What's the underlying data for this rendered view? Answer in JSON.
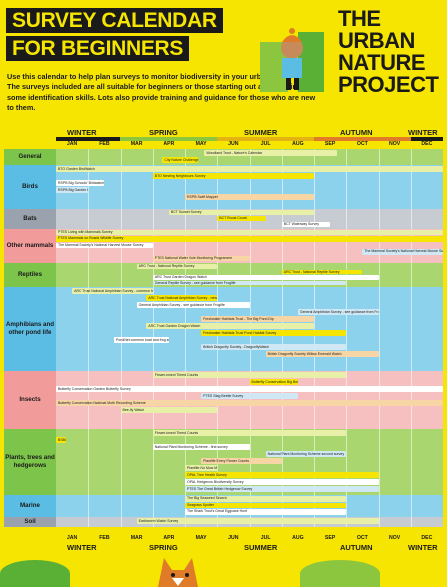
{
  "title": [
    "SURVEY CALENDAR",
    "FOR BEGINNERS"
  ],
  "intro": "Use this calendar to help plan surveys to monitor biodiversity in your urban green space. The surveys included are all suitable for beginners or those starting out and learning some identification skills. Lots also provide training and guidance for those who are new to them.",
  "logo": [
    "THE",
    "URBAN",
    "NATURE",
    "PROJECT"
  ],
  "seasons": [
    "WINTER",
    "SPRING",
    "SUMMER",
    "AUTUMN",
    "WINTER"
  ],
  "months": [
    "JAN",
    "FEB",
    "MAR",
    "APR",
    "MAY",
    "JUN",
    "JUL",
    "AUG",
    "SEP",
    "OCT",
    "NOV",
    "DEC"
  ],
  "colors": {
    "background": "#f6e500",
    "green_band": "#7cc44a",
    "green_band_light": "#a9d66f",
    "blue_band": "#5bbde3",
    "blue_band_light": "#8dd2ec",
    "pink_band": "#f29b9b",
    "grey_band": "#9aa3ad",
    "grey_band_light": "#c6ccd2",
    "winter_bar": "#1a1a1a",
    "spring_bar": "#8cc63f",
    "summer_bar": "#e3b312",
    "autumn_bar": "#e07b27"
  },
  "categories": [
    {
      "label": "General",
      "bars": [
        {
          "text": "Woodland Trust - Nature's Calendar",
          "start": 4.6,
          "end": 8.7
        },
        {
          "text": "City Nature Challenge",
          "start": 3.3,
          "end": 4.4
        }
      ]
    },
    {
      "label": "Birds",
      "bars": [
        {
          "text": "BTO Garden BirdWatch",
          "start": 0,
          "end": 12
        },
        {
          "text": "BTO Nesting Neighbours Survey",
          "start": 3,
          "end": 8
        },
        {
          "text": "RSPB Big Schools' Birdwatch",
          "start": 0,
          "end": 1.5
        },
        {
          "text": "RSPB Big Garden Birdwatch",
          "start": 0,
          "end": 1
        },
        {
          "text": "RSPB Swift Mapper",
          "start": 4,
          "end": 8
        }
      ]
    },
    {
      "label": "Bats",
      "bars": [
        {
          "text": "BCT Sunset Survey",
          "start": 3.5,
          "end": 8
        },
        {
          "text": "BCT Roost Count",
          "start": 5,
          "end": 6.5
        },
        {
          "text": "BCT Waterway Survey",
          "start": 7,
          "end": 8.5
        }
      ]
    },
    {
      "label": "Other mammals",
      "bars": [
        {
          "text": "PTES Living with Mammals Survey",
          "start": 0,
          "end": 12
        },
        {
          "text": "PTES Mammals on Roads Wildlife Survey",
          "start": 0,
          "end": 12
        },
        {
          "text": "The Mammal Society's National Harvest Mouse Survey",
          "start": 0,
          "end": 3
        },
        {
          "text": "The Mammal Society's National Harvest Mouse Survey",
          "start": 9.5,
          "end": 12
        },
        {
          "text": "PTES National Water Vole Monitoring Programme",
          "start": 3,
          "end": 6
        }
      ]
    },
    {
      "label": "Reptiles",
      "bars": [
        {
          "text": "ARC Trust - National Reptile Survey",
          "start": 2.5,
          "end": 5
        },
        {
          "text": "ARC Trust - National Reptile Survey",
          "start": 7,
          "end": 9.5
        },
        {
          "text": "ARC Trust Garden Dragon Watch",
          "start": 3,
          "end": 10
        },
        {
          "text": "General Reptile Survey - see guidance from Froglife",
          "start": 3,
          "end": 9
        }
      ]
    },
    {
      "label": "Amphibians and other pond life",
      "bars": [
        {
          "text": "ARC Trust National Amphibian Survey - common frog and toad survey",
          "start": 0.5,
          "end": 3
        },
        {
          "text": "ARC Trust National Amphibian Survey - newt survey",
          "start": 2.8,
          "end": 5
        },
        {
          "text": "General Amphibian Survey - see guidance from Froglife",
          "start": 2.5,
          "end": 6
        },
        {
          "text": "General Amphibian Survey - see guidance from Froglife",
          "start": 7.5,
          "end": 10
        },
        {
          "text": "Freshwater Habitats Trust - The Big Pond Dip",
          "start": 4.5,
          "end": 8
        },
        {
          "text": "ARC Trust Garden Dragon Watch",
          "start": 2.8,
          "end": 8
        },
        {
          "text": "Freshwater Habitats Trust Pond Habitat Survey",
          "start": 4.5,
          "end": 9
        },
        {
          "text": "PondNet common toad and frog surveys",
          "start": 1.8,
          "end": 3.5
        },
        {
          "text": "British Dragonfly Society - DragonflyWatch",
          "start": 4.5,
          "end": 9
        },
        {
          "text": "British Dragonfly Society Willow Emerald Watch",
          "start": 6.5,
          "end": 10
        }
      ]
    },
    {
      "label": "Insects",
      "bars": [
        {
          "text": "Flower-insect Timed Counts",
          "start": 3,
          "end": 9
        },
        {
          "text": "Butterfly Conservation Big Butterfly Count",
          "start": 6,
          "end": 7.5
        },
        {
          "text": "Butterfly Conservation Garden Butterfly Survey",
          "start": 0,
          "end": 12
        },
        {
          "text": "PTES Stag Beetle Survey",
          "start": 4.5,
          "end": 7.5
        },
        {
          "text": "Butterfly Conservation National Moth Recording Scheme",
          "start": 0,
          "end": 12
        },
        {
          "text": "Bee-fly Watch",
          "start": 2,
          "end": 5
        }
      ]
    },
    {
      "label": "Plants, trees and hedgerows",
      "bars": [
        {
          "text": "Flower-insect Timed Counts",
          "start": 3,
          "end": 9
        },
        {
          "text": "BSBI New Year Plant Hunt",
          "start": 0,
          "end": 0.3
        },
        {
          "text": "National Plant Monitoring Scheme - first survey",
          "start": 3,
          "end": 6
        },
        {
          "text": "National Plant Monitoring Scheme second survey",
          "start": 6.5,
          "end": 9
        },
        {
          "text": "Plantlife Every Flower Counts",
          "start": 4.5,
          "end": 7
        },
        {
          "text": "Plantlife No Mow May",
          "start": 4,
          "end": 5
        },
        {
          "text": "OPAL Tree Health Survey",
          "start": 4,
          "end": 10
        },
        {
          "text": "OPAL Hedgerow Biodiversity Survey",
          "start": 4,
          "end": 10
        },
        {
          "text": "PTES The Great British Hedgerow Survey",
          "start": 4,
          "end": 10
        }
      ]
    },
    {
      "label": "Marine",
      "bars": [
        {
          "text": "The Big Seaweed Search",
          "start": 4,
          "end": 9
        },
        {
          "text": "Seagrass Spotter",
          "start": 4,
          "end": 9
        },
        {
          "text": "The Shark Trust's Great Eggcase Hunt",
          "start": 4,
          "end": 9
        }
      ]
    },
    {
      "label": "Soil",
      "bars": [
        {
          "text": "Earthworm Watch Survey",
          "start": 2.5,
          "end": 10
        }
      ]
    }
  ]
}
